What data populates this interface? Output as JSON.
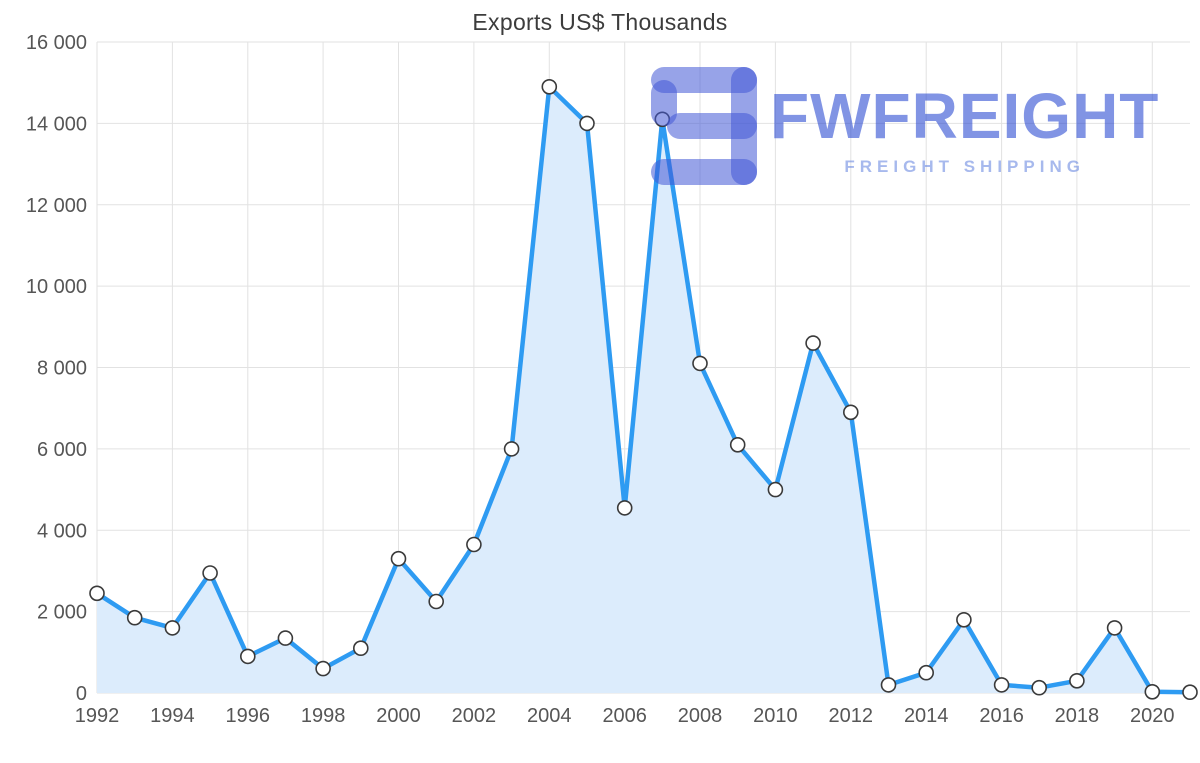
{
  "chart_data": {
    "type": "area",
    "title": "Exports US$ Thousands",
    "xlabel": "",
    "ylabel": "",
    "x": [
      1992,
      1993,
      1994,
      1995,
      1996,
      1997,
      1998,
      1999,
      2000,
      2001,
      2002,
      2003,
      2004,
      2005,
      2006,
      2007,
      2008,
      2009,
      2010,
      2011,
      2012,
      2013,
      2014,
      2015,
      2016,
      2017,
      2018,
      2019,
      2020,
      2021
    ],
    "values": [
      2450,
      1850,
      1600,
      2950,
      900,
      1350,
      600,
      1100,
      3300,
      2250,
      3650,
      6000,
      14900,
      14000,
      4550,
      14100,
      8100,
      6100,
      5000,
      8600,
      6900,
      200,
      500,
      1800,
      200,
      130,
      300,
      1600,
      30,
      20
    ],
    "xlim": [
      1992,
      2021
    ],
    "ylim": [
      0,
      16000
    ],
    "x_tick_values": [
      1992,
      1994,
      1996,
      1998,
      2000,
      2002,
      2004,
      2006,
      2008,
      2010,
      2012,
      2014,
      2016,
      2018,
      2020
    ],
    "x_tick_labels": [
      "1992",
      "1994",
      "1996",
      "1998",
      "2000",
      "2002",
      "2004",
      "2006",
      "2008",
      "2010",
      "2012",
      "2014",
      "2016",
      "2018",
      "2020"
    ],
    "y_tick_values": [
      0,
      2000,
      4000,
      6000,
      8000,
      10000,
      12000,
      14000,
      16000
    ],
    "y_tick_labels": [
      "0",
      "2 000",
      "4 000",
      "6 000",
      "8 000",
      "10 000",
      "12 000",
      "14 000",
      "16 000"
    ],
    "grid": true,
    "legend": false,
    "colors": {
      "line": "#2e9bf2",
      "fill": "#dcecfc",
      "marker_fill": "#ffffff",
      "marker_stroke": "#3a3a3a",
      "grid": "#e2e2e2",
      "axis_text": "#565656"
    }
  },
  "watermark": {
    "brand": "FWFREIGHT",
    "tagline": "FREIGHT SHIPPING",
    "logo_icon": "fwfreight-3-glyph",
    "colors": {
      "icon": "rgba(65,87,213,0.55)",
      "brand_text": "rgba(25,60,205,0.55)",
      "tagline_text": "rgba(95,127,223,0.55)"
    }
  }
}
